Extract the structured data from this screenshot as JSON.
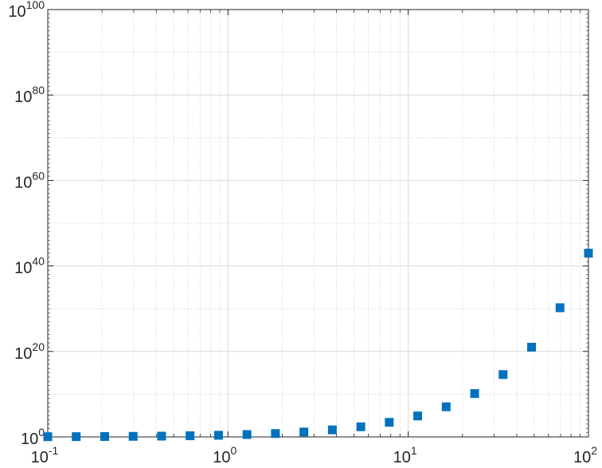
{
  "chart_data": {
    "type": "scatter",
    "title": "",
    "xlabel": "",
    "ylabel": "",
    "x_scale": "log",
    "y_scale": "log",
    "xlim": [
      0.1,
      100
    ],
    "ylim": [
      1,
      1e+100
    ],
    "grid": true,
    "minor_grid": true,
    "legend": "none",
    "marker": "square",
    "marker_color": "#0072BD",
    "x_ticks": [
      {
        "value": 0.1,
        "base": "10",
        "exp": "-1"
      },
      {
        "value": 1,
        "base": "10",
        "exp": "0"
      },
      {
        "value": 10,
        "base": "10",
        "exp": "1"
      },
      {
        "value": 100,
        "base": "10",
        "exp": "2"
      }
    ],
    "y_ticks": [
      {
        "value": 1,
        "base": "10",
        "exp": "0"
      },
      {
        "value": 1e+20,
        "base": "10",
        "exp": "20"
      },
      {
        "value": 1e+40,
        "base": "10",
        "exp": "40"
      },
      {
        "value": 1e+60,
        "base": "10",
        "exp": "60"
      },
      {
        "value": 1e+80,
        "base": "10",
        "exp": "80"
      },
      {
        "value": 1e+100,
        "base": "10",
        "exp": "100"
      }
    ],
    "series": [
      {
        "points": [
          {
            "x": 0.1,
            "y": 1.1
          },
          {
            "x": 0.1438,
            "y": 1.15
          },
          {
            "x": 0.2069,
            "y": 1.23
          },
          {
            "x": 0.2976,
            "y": 1.35
          },
          {
            "x": 0.4281,
            "y": 1.53
          },
          {
            "x": 0.6158,
            "y": 1.85
          },
          {
            "x": 0.8859,
            "y": 2.43
          },
          {
            "x": 1.2743,
            "y": 3.58
          },
          {
            "x": 1.833,
            "y": 6.25
          },
          {
            "x": 2.6367,
            "y": 13.97
          },
          {
            "x": 3.7927,
            "y": 44.4
          },
          {
            "x": 5.4556,
            "y": 234.0
          },
          {
            "x": 7.8476,
            "y": 2563.0
          },
          {
            "x": 11.288,
            "y": 79900.0
          },
          {
            "x": 16.238,
            "y": 11300000.0
          },
          {
            "x": 23.357,
            "y": 14000000000.0
          },
          {
            "x": 33.598,
            "y": 390000000000000.0
          },
          {
            "x": 48.329,
            "y": 1e+21
          },
          {
            "x": 69.519,
            "y": 1.7e+30
          },
          {
            "x": 100,
            "y": 1e+43
          }
        ]
      }
    ]
  }
}
